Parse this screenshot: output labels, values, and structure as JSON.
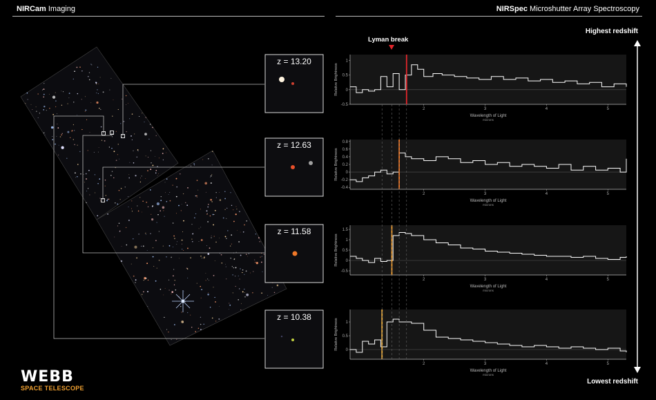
{
  "header": {
    "left_bold": "NIRCam",
    "left_rest": " Imaging",
    "right_bold": "NIRSpec",
    "right_rest": " Microshutter Array Spectroscopy"
  },
  "axis_labels": {
    "top": "Highest redshift",
    "bottom": "Lowest redshift"
  },
  "annotation": "Lyman break",
  "logo": {
    "title": "WEBB",
    "subtitle": "SPACE TELESCOPE"
  },
  "colors": {
    "background": "#000000",
    "break_red": "#e3262b",
    "break_orange": "#f07a28",
    "break_amber": "#f5a030",
    "break_yellow": "#f0b040",
    "panel": "#1a1a1a"
  },
  "chart_data": [
    {
      "type": "line",
      "step": true,
      "redshift_label": "z = 13.20",
      "break_x": 1.72,
      "break_color": "#e3262b",
      "xlabel": "Wavelength of Light",
      "xunit": "microns",
      "ylabel": "Relative Brightness",
      "xlim": [
        0.8,
        5.3
      ],
      "ylim": [
        -0.5,
        1.2
      ],
      "yticks": [
        -0.5,
        0,
        0.5,
        1
      ],
      "xticks": [
        2,
        3,
        4,
        5
      ],
      "x": [
        0.8,
        0.9,
        1.0,
        1.1,
        1.2,
        1.3,
        1.4,
        1.5,
        1.6,
        1.7,
        1.8,
        1.9,
        2.0,
        2.15,
        2.3,
        2.5,
        2.7,
        2.9,
        3.1,
        3.3,
        3.5,
        3.7,
        3.9,
        4.1,
        4.3,
        4.5,
        4.7,
        4.9,
        5.1,
        5.3
      ],
      "y": [
        0.1,
        -0.1,
        0.0,
        -0.05,
        0.0,
        0.45,
        0.1,
        0.55,
        0.0,
        0.5,
        0.85,
        0.7,
        0.45,
        0.55,
        0.5,
        0.45,
        0.4,
        0.35,
        0.45,
        0.35,
        0.4,
        0.3,
        0.35,
        0.25,
        0.3,
        0.2,
        0.25,
        0.1,
        0.2,
        0.1
      ]
    },
    {
      "type": "line",
      "step": true,
      "redshift_label": "z = 12.63",
      "break_x": 1.6,
      "break_color": "#f07a28",
      "xlabel": "Wavelength of Light",
      "xunit": "microns",
      "ylabel": "Relative Brightness",
      "xlim": [
        0.8,
        5.3
      ],
      "ylim": [
        -0.45,
        0.85
      ],
      "yticks": [
        -0.4,
        -0.2,
        0,
        0.2,
        0.4,
        0.6,
        0.8
      ],
      "xticks": [
        2,
        3,
        4,
        5
      ],
      "x": [
        0.8,
        0.9,
        1.0,
        1.1,
        1.2,
        1.3,
        1.4,
        1.5,
        1.6,
        1.7,
        1.8,
        2.0,
        2.2,
        2.4,
        2.6,
        2.8,
        3.0,
        3.2,
        3.4,
        3.6,
        3.8,
        4.0,
        4.2,
        4.4,
        4.6,
        4.8,
        5.0,
        5.2,
        5.3
      ],
      "y": [
        -0.2,
        -0.25,
        -0.15,
        -0.1,
        0.0,
        0.05,
        -0.05,
        0.0,
        0.5,
        0.4,
        0.35,
        0.3,
        0.4,
        0.35,
        0.25,
        0.3,
        0.2,
        0.25,
        0.15,
        0.2,
        0.15,
        0.1,
        0.2,
        0.05,
        0.15,
        0.05,
        0.1,
        0.0,
        0.35
      ]
    },
    {
      "type": "line",
      "step": true,
      "redshift_label": "z = 11.58",
      "break_x": 1.48,
      "break_color": "#f5a030",
      "xlabel": "Wavelength of Light",
      "xunit": "microns",
      "ylabel": "Relative Brightness",
      "xlim": [
        0.8,
        5.3
      ],
      "ylim": [
        -0.7,
        1.7
      ],
      "yticks": [
        -0.5,
        0,
        0.5,
        1,
        1.5
      ],
      "xticks": [
        2,
        3,
        4,
        5
      ],
      "x": [
        0.8,
        0.9,
        1.0,
        1.1,
        1.2,
        1.3,
        1.4,
        1.5,
        1.6,
        1.7,
        1.8,
        2.0,
        2.2,
        2.4,
        2.6,
        2.8,
        3.0,
        3.2,
        3.4,
        3.6,
        3.8,
        4.0,
        4.2,
        4.4,
        4.6,
        4.8,
        5.0,
        5.2,
        5.3
      ],
      "y": [
        0.2,
        0.1,
        0.0,
        -0.1,
        0.1,
        -0.05,
        0.0,
        1.2,
        1.35,
        1.3,
        1.2,
        1.0,
        0.85,
        0.75,
        0.6,
        0.55,
        0.45,
        0.4,
        0.35,
        0.3,
        0.25,
        0.2,
        0.2,
        0.15,
        0.2,
        0.1,
        0.05,
        0.15,
        0.2
      ]
    },
    {
      "type": "line",
      "step": true,
      "redshift_label": "z = 10.38",
      "break_x": 1.32,
      "break_color": "#f0b040",
      "xlabel": "Wavelength of Light",
      "xunit": "microns",
      "ylabel": "Relative Brightness",
      "xlim": [
        0.8,
        5.3
      ],
      "ylim": [
        -0.35,
        1.45
      ],
      "yticks": [
        0,
        0.5,
        1
      ],
      "xticks": [
        2,
        3,
        4,
        5
      ],
      "x": [
        0.8,
        0.9,
        1.0,
        1.1,
        1.2,
        1.3,
        1.4,
        1.5,
        1.6,
        1.8,
        2.0,
        2.2,
        2.4,
        2.6,
        2.8,
        3.0,
        3.2,
        3.4,
        3.6,
        3.8,
        4.0,
        4.2,
        4.4,
        4.6,
        4.8,
        5.0,
        5.2,
        5.3
      ],
      "y": [
        0.0,
        -0.1,
        0.3,
        0.2,
        0.35,
        0.1,
        1.0,
        1.1,
        1.0,
        0.95,
        0.7,
        0.45,
        0.4,
        0.35,
        0.3,
        0.25,
        0.2,
        0.15,
        0.1,
        0.15,
        0.1,
        0.05,
        0.1,
        0.05,
        0.0,
        0.05,
        -0.05,
        -0.1
      ]
    }
  ]
}
